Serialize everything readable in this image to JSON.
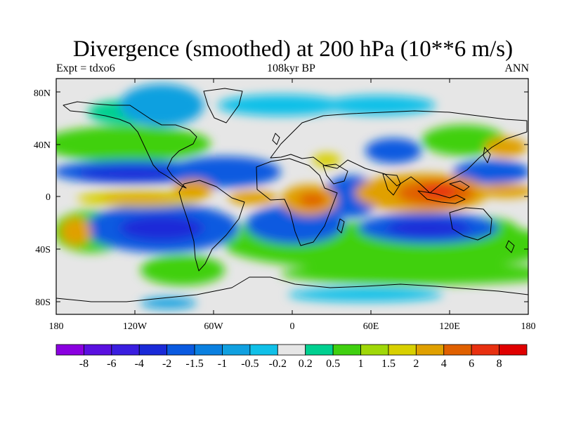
{
  "title": "Divergence (smoothed) at 200 hPa (10**6 m/s)",
  "subtitle_center": "108kyr BP",
  "subtitle_left": "Expt = tdxo6",
  "subtitle_right": "ANN",
  "lat_ticks": [
    "80N",
    "40N",
    "0",
    "40S",
    "80S"
  ],
  "lon_ticks": [
    "180",
    "120W",
    "60W",
    "0",
    "60E",
    "120E",
    "180"
  ],
  "colorbar": {
    "labels": [
      "-8",
      "-6",
      "-4",
      "-2",
      "-1.5",
      "-1",
      "-0.5",
      "-0.2",
      "0.2",
      "0.5",
      "1",
      "1.5",
      "2",
      "4",
      "6",
      "8"
    ],
    "colors": [
      "#8a00e0",
      "#5a10e0",
      "#3a1ee0",
      "#1a2ad8",
      "#0a5ae0",
      "#0a80e0",
      "#10a0e0",
      "#10c0e8",
      "#e6e6e6",
      "#00d090",
      "#40d010",
      "#a0d808",
      "#d8d000",
      "#e0a000",
      "#e06000",
      "#e83010",
      "#e00000"
    ]
  }
}
